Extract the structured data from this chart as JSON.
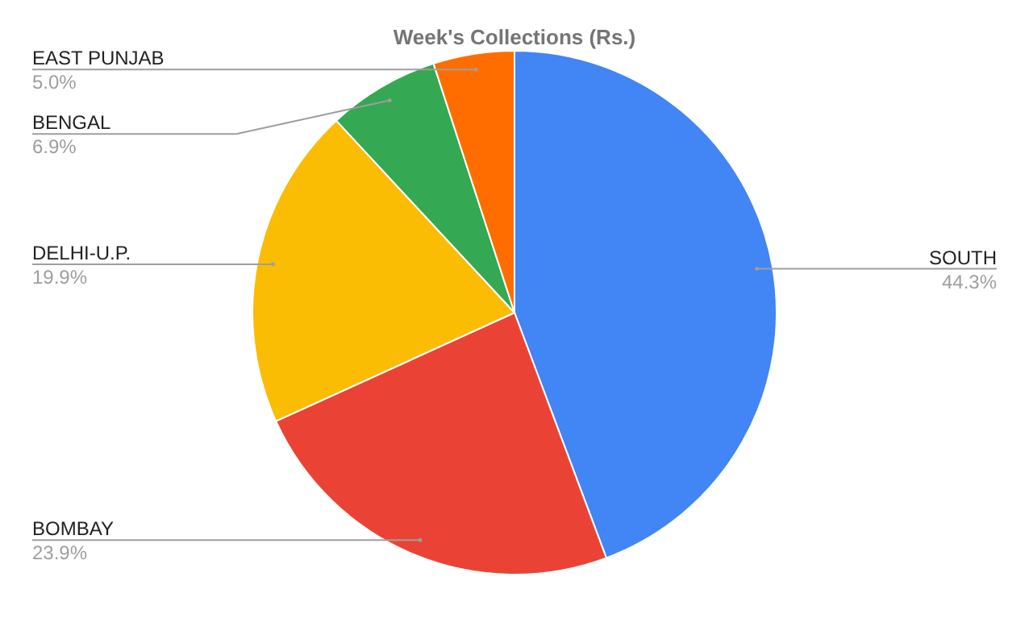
{
  "chart_data": {
    "type": "pie",
    "title": "Week's Collections (Rs.)",
    "categories": [
      "SOUTH",
      "BOMBAY",
      "DELHI-U.P.",
      "BENGAL",
      "EAST PUNJAB"
    ],
    "values": [
      44.3,
      23.9,
      19.9,
      6.9,
      5.0
    ],
    "value_labels": [
      "44.3%",
      "23.9%",
      "19.9%",
      "6.9%",
      "5.0%"
    ],
    "colors": [
      "#4285f4",
      "#ea4335",
      "#fbbc04",
      "#34a853",
      "#ff6d01"
    ],
    "legend": false
  }
}
